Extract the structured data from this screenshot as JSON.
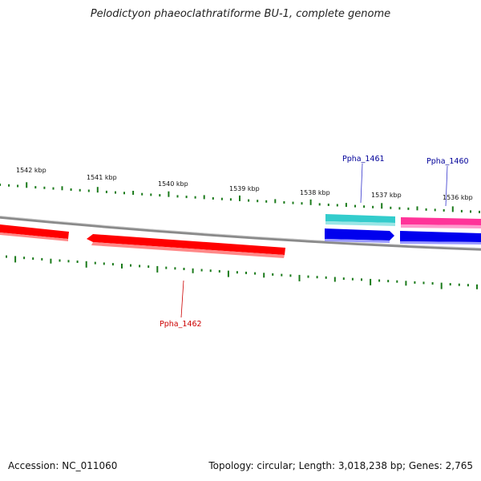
{
  "title": "Pelodictyon phaeoclathratiforme BU-1, complete genome",
  "footer": {
    "accession": "Accession: NC_011060",
    "topology": "Topology: circular; Length: 3,018,238 bp; Genes: 2,765"
  },
  "kbp_labels": [
    "1542 kbp",
    "1541 kbp",
    "1540 kbp",
    "1539 kbp",
    "1538 kbp",
    "1537 kbp",
    "1536 kbp"
  ],
  "genes": [
    {
      "name": "Ppha_1461",
      "color": "#000099"
    },
    {
      "name": "Ppha_1460",
      "color": "#000099"
    },
    {
      "name": "Ppha_1462",
      "color": "#cc0000"
    }
  ],
  "colors": {
    "tick": "#1a7a1a",
    "backbone": "#888888",
    "red": "#ff0000",
    "cyan": "#33cccc",
    "magenta": "#ff3399",
    "blue": "#0000ee"
  }
}
